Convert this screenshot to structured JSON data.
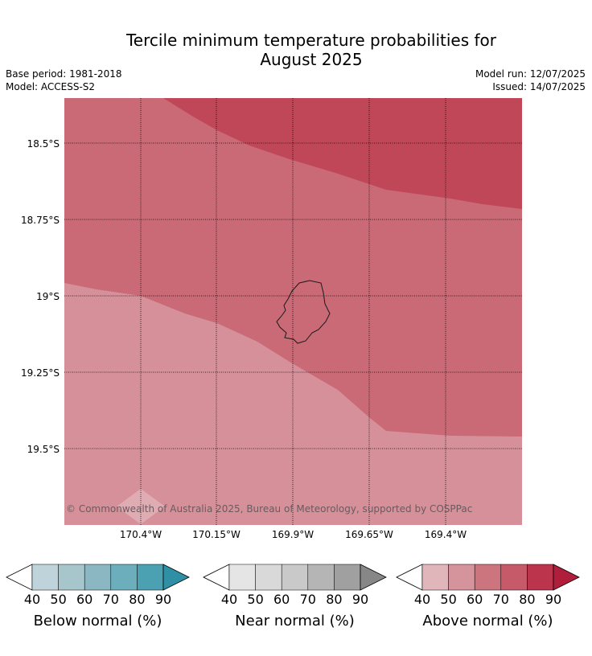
{
  "header": {
    "title_line1": "Tercile minimum temperature probabilities for",
    "title_line2": "August 2025",
    "base_period": "Base period: 1981-2018",
    "model": "Model: ACCESS-S2",
    "model_run": "Model run: 12/07/2025",
    "issued": "Issued: 14/07/2025"
  },
  "map": {
    "lat_labels": [
      "18.5°S",
      "18.75°S",
      "19°S",
      "19.25°S",
      "19.5°S"
    ],
    "lon_labels": [
      "170.4°W",
      "170.15°W",
      "169.9°W",
      "169.65°W",
      "169.4°W"
    ],
    "copyright": "© Commonwealth of Australia 2025, Bureau of Meteorology, supported by COSPPac",
    "colors": {
      "above_50_60": "#d6909a",
      "above_60_70": "#c96a76",
      "above_70_80": "#c04757"
    }
  },
  "colorbars": [
    {
      "label": "Below normal (%)",
      "ticks": [
        "40",
        "50",
        "60",
        "70",
        "80",
        "90"
      ],
      "colors": [
        "#bfd3da",
        "#a6c6cc",
        "#8ab7c2",
        "#6daebd",
        "#4ba0b1",
        "#2f8fa4"
      ]
    },
    {
      "label": "Near normal (%)",
      "ticks": [
        "40",
        "50",
        "60",
        "70",
        "80",
        "90"
      ],
      "colors": [
        "#e5e5e5",
        "#d9d9d9",
        "#c9c9c9",
        "#b5b5b5",
        "#a0a0a0",
        "#878787"
      ]
    },
    {
      "label": "Above normal (%)",
      "ticks": [
        "40",
        "50",
        "60",
        "70",
        "80",
        "90"
      ],
      "colors": [
        "#e1b6ba",
        "#d5949b",
        "#cc757f",
        "#c75a69",
        "#bc334c",
        "#b01e3c"
      ]
    }
  ]
}
